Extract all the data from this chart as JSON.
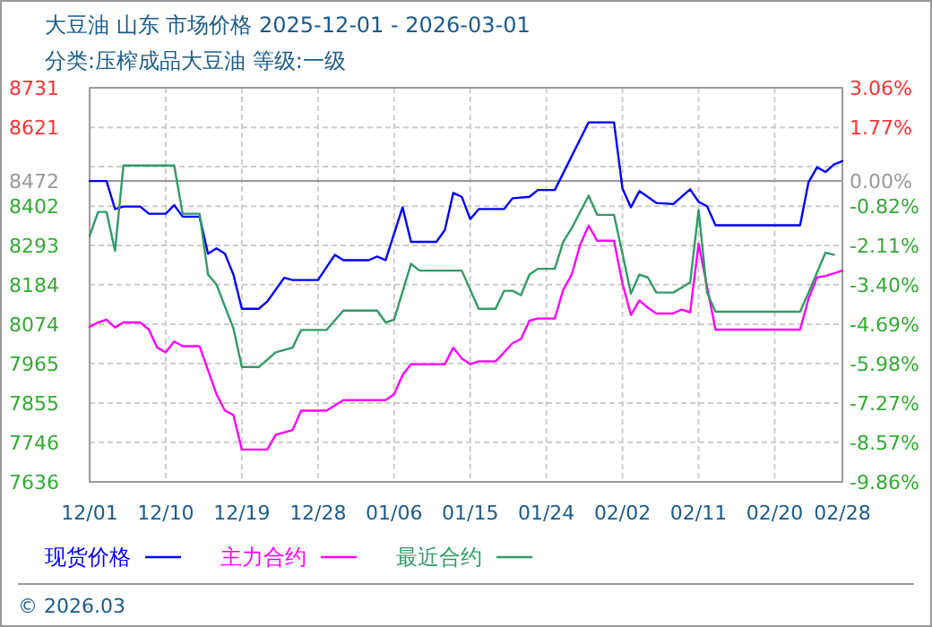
{
  "chart_data": {
    "type": "line",
    "title": "大豆油 山东 市场价格 2025-12-01 - 2026-03-01",
    "subtitle": "分类:压榨成品大豆油 等级:一级",
    "annotations": [
      "© 2026.03"
    ],
    "xlim": [
      "2025-12-01",
      "2026-02-28"
    ],
    "xticks": [
      {
        "value": "2025-12-01",
        "label": "12/01"
      },
      {
        "value": "2025-12-10",
        "label": "12/10"
      },
      {
        "value": "2025-12-19",
        "label": "12/19"
      },
      {
        "value": "2025-12-28",
        "label": "12/28"
      },
      {
        "value": "2026-01-06",
        "label": "01/06"
      },
      {
        "value": "2026-01-15",
        "label": "01/15"
      },
      {
        "value": "2026-01-24",
        "label": "01/24"
      },
      {
        "value": "2026-02-02",
        "label": "02/02"
      },
      {
        "value": "2026-02-11",
        "label": "02/11"
      },
      {
        "value": "2026-02-20",
        "label": "02/20"
      },
      {
        "value": "2026-02-28",
        "label": "02/28"
      }
    ],
    "ylim": [
      7636,
      8731
    ],
    "yticks": [
      8731,
      8621,
      {
        "value": 8512,
        "label": null
      },
      8472,
      8402,
      8293,
      8184,
      8074,
      7965,
      7855,
      7746,
      7636
    ],
    "y2lim": [
      -9.86,
      3.06
    ],
    "y2ticks": [
      {
        "value": 3.06,
        "label": "3.06%"
      },
      {
        "value": 1.77,
        "label": "1.77%"
      },
      {
        "value": 0,
        "label": "0.00%"
      },
      {
        "value": -0.82,
        "label": "-0.82%"
      },
      {
        "value": -2.11,
        "label": "-2.11%"
      },
      {
        "value": -3.4,
        "label": "-3.40%"
      },
      {
        "value": -4.69,
        "label": "-4.69%"
      },
      {
        "value": -5.98,
        "label": "-5.98%"
      },
      {
        "value": -7.27,
        "label": "-7.27%"
      },
      {
        "value": -8.57,
        "label": "-8.57%"
      },
      {
        "value": -9.86,
        "label": "-9.86%"
      }
    ],
    "ref_lines": [
      {
        "axis": "y",
        "value": 8472,
        "color": "#999999",
        "line_style": "solid"
      }
    ],
    "grid": true,
    "legend": "bottom",
    "marker": "none",
    "line_style": "solid",
    "series": [
      {
        "name": "现货价格",
        "color": "#0000ff",
        "x": [
          "2025-12-01",
          "2025-12-03",
          "2025-12-04",
          "2025-12-05",
          "2025-12-07",
          "2025-12-08",
          "2025-12-10",
          "2025-12-11",
          "2025-12-12",
          "2025-12-14",
          "2025-12-15",
          "2025-12-16",
          "2025-12-17",
          "2025-12-18",
          "2025-12-19",
          "2025-12-21",
          "2025-12-22",
          "2025-12-24",
          "2025-12-25",
          "2025-12-28",
          "2025-12-30",
          "2025-12-31",
          "2026-01-03",
          "2026-01-04",
          "2026-01-05",
          "2026-01-07",
          "2026-01-08",
          "2026-01-11",
          "2026-01-12",
          "2026-01-13",
          "2026-01-14",
          "2026-01-15",
          "2026-01-16",
          "2026-01-19",
          "2026-01-20",
          "2026-01-22",
          "2026-01-23",
          "2026-01-25",
          "2026-01-29",
          "2026-02-01",
          "2026-02-02",
          "2026-02-03",
          "2026-02-04",
          "2026-02-06",
          "2026-02-08",
          "2026-02-10",
          "2026-02-11",
          "2026-02-12",
          "2026-02-13",
          "2026-02-23",
          "2026-02-24",
          "2026-02-25",
          "2026-02-26",
          "2026-02-27",
          "2026-02-28"
        ],
        "values": [
          8472,
          8472,
          8394,
          8401,
          8401,
          8381,
          8381,
          8405,
          8373,
          8373,
          8270,
          8285,
          8270,
          8212,
          8117,
          8117,
          8137,
          8203,
          8197,
          8197,
          8267,
          8252,
          8252,
          8262,
          8252,
          8399,
          8303,
          8303,
          8336,
          8439,
          8428,
          8366,
          8394,
          8394,
          8424,
          8428,
          8447,
          8447,
          8635,
          8635,
          8451,
          8399,
          8444,
          8411,
          8408,
          8449,
          8414,
          8402,
          8349,
          8349,
          8469,
          8510,
          8497,
          8518,
          8527
        ]
      },
      {
        "name": "主力合约",
        "color": "#ff00ff",
        "x": [
          "2025-12-01",
          "2025-12-02",
          "2025-12-03",
          "2025-12-04",
          "2025-12-05",
          "2025-12-07",
          "2025-12-08",
          "2025-12-09",
          "2025-12-10",
          "2025-12-11",
          "2025-12-12",
          "2025-12-14",
          "2025-12-15",
          "2025-12-16",
          "2025-12-17",
          "2025-12-18",
          "2025-12-19",
          "2025-12-22",
          "2025-12-23",
          "2025-12-25",
          "2025-12-26",
          "2025-12-29",
          "2025-12-31",
          "2026-01-05",
          "2026-01-06",
          "2026-01-07",
          "2026-01-08",
          "2026-01-12",
          "2026-01-13",
          "2026-01-14",
          "2026-01-15",
          "2026-01-16",
          "2026-01-18",
          "2026-01-19",
          "2026-01-20",
          "2026-01-21",
          "2026-01-22",
          "2026-01-23",
          "2026-01-25",
          "2026-01-26",
          "2026-01-27",
          "2026-01-28",
          "2026-01-29",
          "2026-01-30",
          "2026-02-01",
          "2026-02-02",
          "2026-02-03",
          "2026-02-04",
          "2026-02-05",
          "2026-02-06",
          "2026-02-08",
          "2026-02-09",
          "2026-02-10",
          "2026-02-11",
          "2026-02-13",
          "2026-02-23",
          "2026-02-24",
          "2026-02-25",
          "2026-02-26",
          "2026-02-28"
        ],
        "values": [
          8067,
          8079,
          8087,
          8065,
          8079,
          8079,
          8059,
          8009,
          7996,
          8026,
          8013,
          8013,
          7946,
          7880,
          7834,
          7822,
          7726,
          7726,
          7767,
          7780,
          7834,
          7834,
          7863,
          7863,
          7880,
          7933,
          7963,
          7963,
          8009,
          7979,
          7963,
          7971,
          7971,
          7996,
          8021,
          8033,
          8084,
          8090,
          8090,
          8170,
          8212,
          8295,
          8348,
          8306,
          8306,
          8187,
          8100,
          8140,
          8120,
          8104,
          8104,
          8115,
          8107,
          8298,
          8059,
          8059,
          8145,
          8204,
          8208,
          8223
        ]
      },
      {
        "name": "最近合约",
        "color": "#339966",
        "x": [
          "2025-12-01",
          "2025-12-02",
          "2025-12-03",
          "2025-12-04",
          "2025-12-05",
          "2025-12-11",
          "2025-12-12",
          "2025-12-14",
          "2025-12-15",
          "2025-12-16",
          "2025-12-18",
          "2025-12-19",
          "2025-12-21",
          "2025-12-23",
          "2025-12-25",
          "2025-12-26",
          "2025-12-29",
          "2025-12-31",
          "2026-01-04",
          "2026-01-05",
          "2026-01-06",
          "2026-01-08",
          "2026-01-09",
          "2026-01-14",
          "2026-01-16",
          "2026-01-18",
          "2026-01-19",
          "2026-01-20",
          "2026-01-21",
          "2026-01-22",
          "2026-01-23",
          "2026-01-25",
          "2026-01-26",
          "2026-01-27",
          "2026-01-29",
          "2026-01-30",
          "2026-02-01",
          "2026-02-02",
          "2026-02-03",
          "2026-02-04",
          "2026-02-05",
          "2026-02-06",
          "2026-02-08",
          "2026-02-10",
          "2026-02-11",
          "2026-02-12",
          "2026-02-13",
          "2026-02-23",
          "2026-02-24",
          "2026-02-26",
          "2026-02-27"
        ],
        "values": [
          8319,
          8386,
          8386,
          8278,
          8515,
          8515,
          8381,
          8381,
          8212,
          8184,
          8063,
          7955,
          7955,
          7996,
          8009,
          8058,
          8058,
          8112,
          8112,
          8079,
          8087,
          8242,
          8223,
          8223,
          8117,
          8117,
          8167,
          8167,
          8155,
          8212,
          8228,
          8228,
          8303,
          8341,
          8431,
          8378,
          8378,
          8270,
          8159,
          8212,
          8204,
          8162,
          8162,
          8190,
          8391,
          8162,
          8109,
          8109,
          8162,
          8273,
          8267
        ]
      }
    ]
  }
}
